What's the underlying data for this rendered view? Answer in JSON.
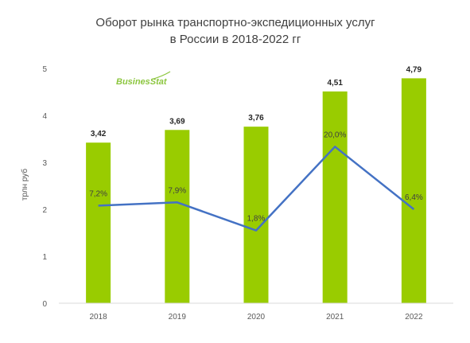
{
  "logo": {
    "text": "BusinesStat",
    "color": "#8cc63f"
  },
  "chart_data": {
    "type": "bar",
    "title": "Оборот рынка транспортно-экспедиционных услуг",
    "subtitle": "в России в 2018-2022 гг",
    "xlabel": "",
    "ylabel": "трлн руб",
    "ylim": [
      0,
      5
    ],
    "yticks": [
      "0",
      "1",
      "2",
      "3",
      "4",
      "5"
    ],
    "categories": [
      "2018",
      "2019",
      "2020",
      "2021",
      "2022"
    ],
    "values": [
      3.42,
      3.69,
      3.76,
      4.51,
      4.79
    ],
    "value_labels": [
      "3,42",
      "3,69",
      "3,76",
      "4,51",
      "4,79"
    ],
    "bar_color": "#99cc00",
    "growth_line": {
      "values": [
        7.2,
        7.9,
        1.8,
        20.0,
        6.4
      ],
      "labels": [
        "7,2%",
        "7,9%",
        "1,8%",
        "20,0%",
        "6,4%"
      ],
      "color": "#4472c4"
    },
    "grid": false,
    "legend": "none"
  }
}
